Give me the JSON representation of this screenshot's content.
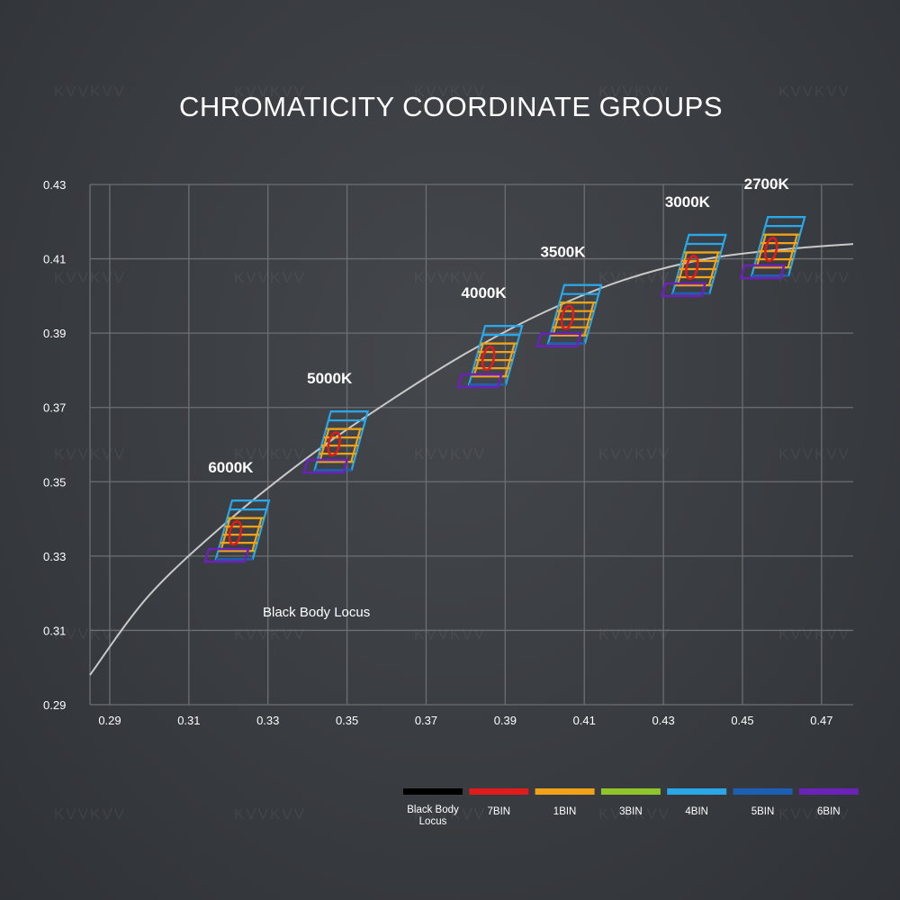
{
  "watermark": "KVVKVV",
  "chart_data": {
    "type": "scatter",
    "title": "CHROMATICITY COORDINATE GROUPS",
    "xlabel": "",
    "ylabel": "",
    "xlim": [
      0.285,
      0.478
    ],
    "ylim": [
      0.29,
      0.43
    ],
    "x_ticks": [
      "0.29",
      "0.31",
      "0.33",
      "0.35",
      "0.37",
      "0.39",
      "0.41",
      "0.43",
      "0.45",
      "0.47"
    ],
    "y_ticks": [
      "0.43",
      "0.41",
      "0.39",
      "0.37",
      "0.35",
      "0.33",
      "0.31",
      "0.29"
    ],
    "grid": true,
    "black_body_locus": {
      "name": "Black Body Locus",
      "points": [
        [
          0.285,
          0.298
        ],
        [
          0.3,
          0.3195
        ],
        [
          0.32,
          0.3395
        ],
        [
          0.34,
          0.3565
        ],
        [
          0.36,
          0.3712
        ],
        [
          0.38,
          0.3845
        ],
        [
          0.4,
          0.3957
        ],
        [
          0.42,
          0.4043
        ],
        [
          0.44,
          0.4098
        ],
        [
          0.46,
          0.4125
        ],
        [
          0.478,
          0.414
        ]
      ]
    },
    "cct_groups": [
      {
        "label": "6000K",
        "x": 0.3215,
        "y": 0.3355
      },
      {
        "label": "5000K",
        "x": 0.3465,
        "y": 0.3595
      },
      {
        "label": "4000K",
        "x": 0.3855,
        "y": 0.3825
      },
      {
        "label": "3500K",
        "x": 0.4055,
        "y": 0.3935
      },
      {
        "label": "3000K",
        "x": 0.437,
        "y": 0.407
      },
      {
        "label": "2700K",
        "x": 0.457,
        "y": 0.4118
      }
    ],
    "annotations": [
      "Black Body Locus"
    ],
    "legend": [
      {
        "name": "Black Body Locus",
        "color": "#000000"
      },
      {
        "name": "7BIN",
        "color": "#e01b1b"
      },
      {
        "name": "1BIN",
        "color": "#f2a219"
      },
      {
        "name": "3BIN",
        "color": "#8fc52a"
      },
      {
        "name": "4BIN",
        "color": "#2aa7e8"
      },
      {
        "name": "5BIN",
        "color": "#1d5fb4"
      },
      {
        "name": "6BIN",
        "color": "#6a22b8"
      }
    ],
    "legend_position": "bottom-right",
    "colors": {
      "locus_line": "#c9c9c9",
      "grid": "#6c6f73"
    }
  }
}
